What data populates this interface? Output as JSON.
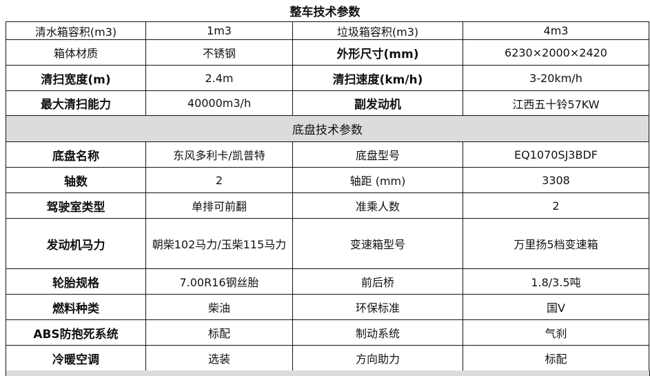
{
  "title": "整车技术参数",
  "vehicle_rows": [
    [
      {
        "text": "清水箱容积(m3)",
        "bold": false
      },
      {
        "text": "1m3",
        "bold": false
      },
      {
        "text": "垃圾箱容积(m3)",
        "bold": false
      },
      {
        "text": "4m3",
        "bold": false
      }
    ],
    [
      {
        "text": "箱体材质",
        "bold": false
      },
      {
        "text": "不锈钢",
        "bold": false
      },
      {
        "text": "外形尺寸(mm)",
        "bold": true
      },
      {
        "text": "6230×2000×2420",
        "bold": false
      }
    ],
    [
      {
        "text": "清扫宽度(m)",
        "bold": true
      },
      {
        "text": "2.4m",
        "bold": false
      },
      {
        "text": "清扫速度(km/h)",
        "bold": true
      },
      {
        "text": "3-20km/h",
        "bold": false
      }
    ],
    [
      {
        "text": "最大清扫能力",
        "bold": true
      },
      {
        "text": "40000m3/h",
        "bold": false
      },
      {
        "text": "副发动机",
        "bold": true
      },
      {
        "text": "江西五十铃57KW",
        "bold": false
      }
    ]
  ],
  "chassis_title": "底盘技术参数",
  "chassis_rows": [
    [
      {
        "text": "底盘名称",
        "bold": true
      },
      {
        "text": "东风多利卡/凯普特",
        "bold": false
      },
      {
        "text": "底盘型号",
        "bold": false
      },
      {
        "text": "EQ1070SJ3BDF",
        "bold": false
      }
    ],
    [
      {
        "text": "轴数",
        "bold": true
      },
      {
        "text": "2",
        "bold": false
      },
      {
        "text": "轴距 (mm)",
        "bold": false
      },
      {
        "text": "3308",
        "bold": false
      }
    ],
    [
      {
        "text": "驾驶室类型",
        "bold": true
      },
      {
        "text": "单排可前翻",
        "bold": false
      },
      {
        "text": "准乘人数",
        "bold": false
      },
      {
        "text": "2",
        "bold": false
      }
    ],
    [
      {
        "text": "发动机马力",
        "bold": true
      },
      {
        "text": "朝柴102马力/玉柴115马力",
        "bold": false
      },
      {
        "text": "变速箱型号",
        "bold": false
      },
      {
        "text": "万里扬5档变速箱",
        "bold": false
      }
    ],
    [
      {
        "text": "轮胎规格",
        "bold": true
      },
      {
        "text": "7.00R16钢丝胎",
        "bold": false
      },
      {
        "text": "前后桥",
        "bold": false
      },
      {
        "text": "1.8/3.5吨",
        "bold": false
      }
    ],
    [
      {
        "text": "燃料种类",
        "bold": true
      },
      {
        "text": "柴油",
        "bold": false
      },
      {
        "text": "环保标准",
        "bold": false
      },
      {
        "text": "国V",
        "bold": false
      }
    ],
    [
      {
        "text": "ABS防抱死系统",
        "bold": true
      },
      {
        "text": "标配",
        "bold": false
      },
      {
        "text": "制动系统",
        "bold": false
      },
      {
        "text": "气刹",
        "bold": false
      }
    ],
    [
      {
        "text": "冷暖空调",
        "bold": true
      },
      {
        "text": "选装",
        "bold": false
      },
      {
        "text": "方向助力",
        "bold": false
      },
      {
        "text": "标配",
        "bold": false
      }
    ]
  ]
}
